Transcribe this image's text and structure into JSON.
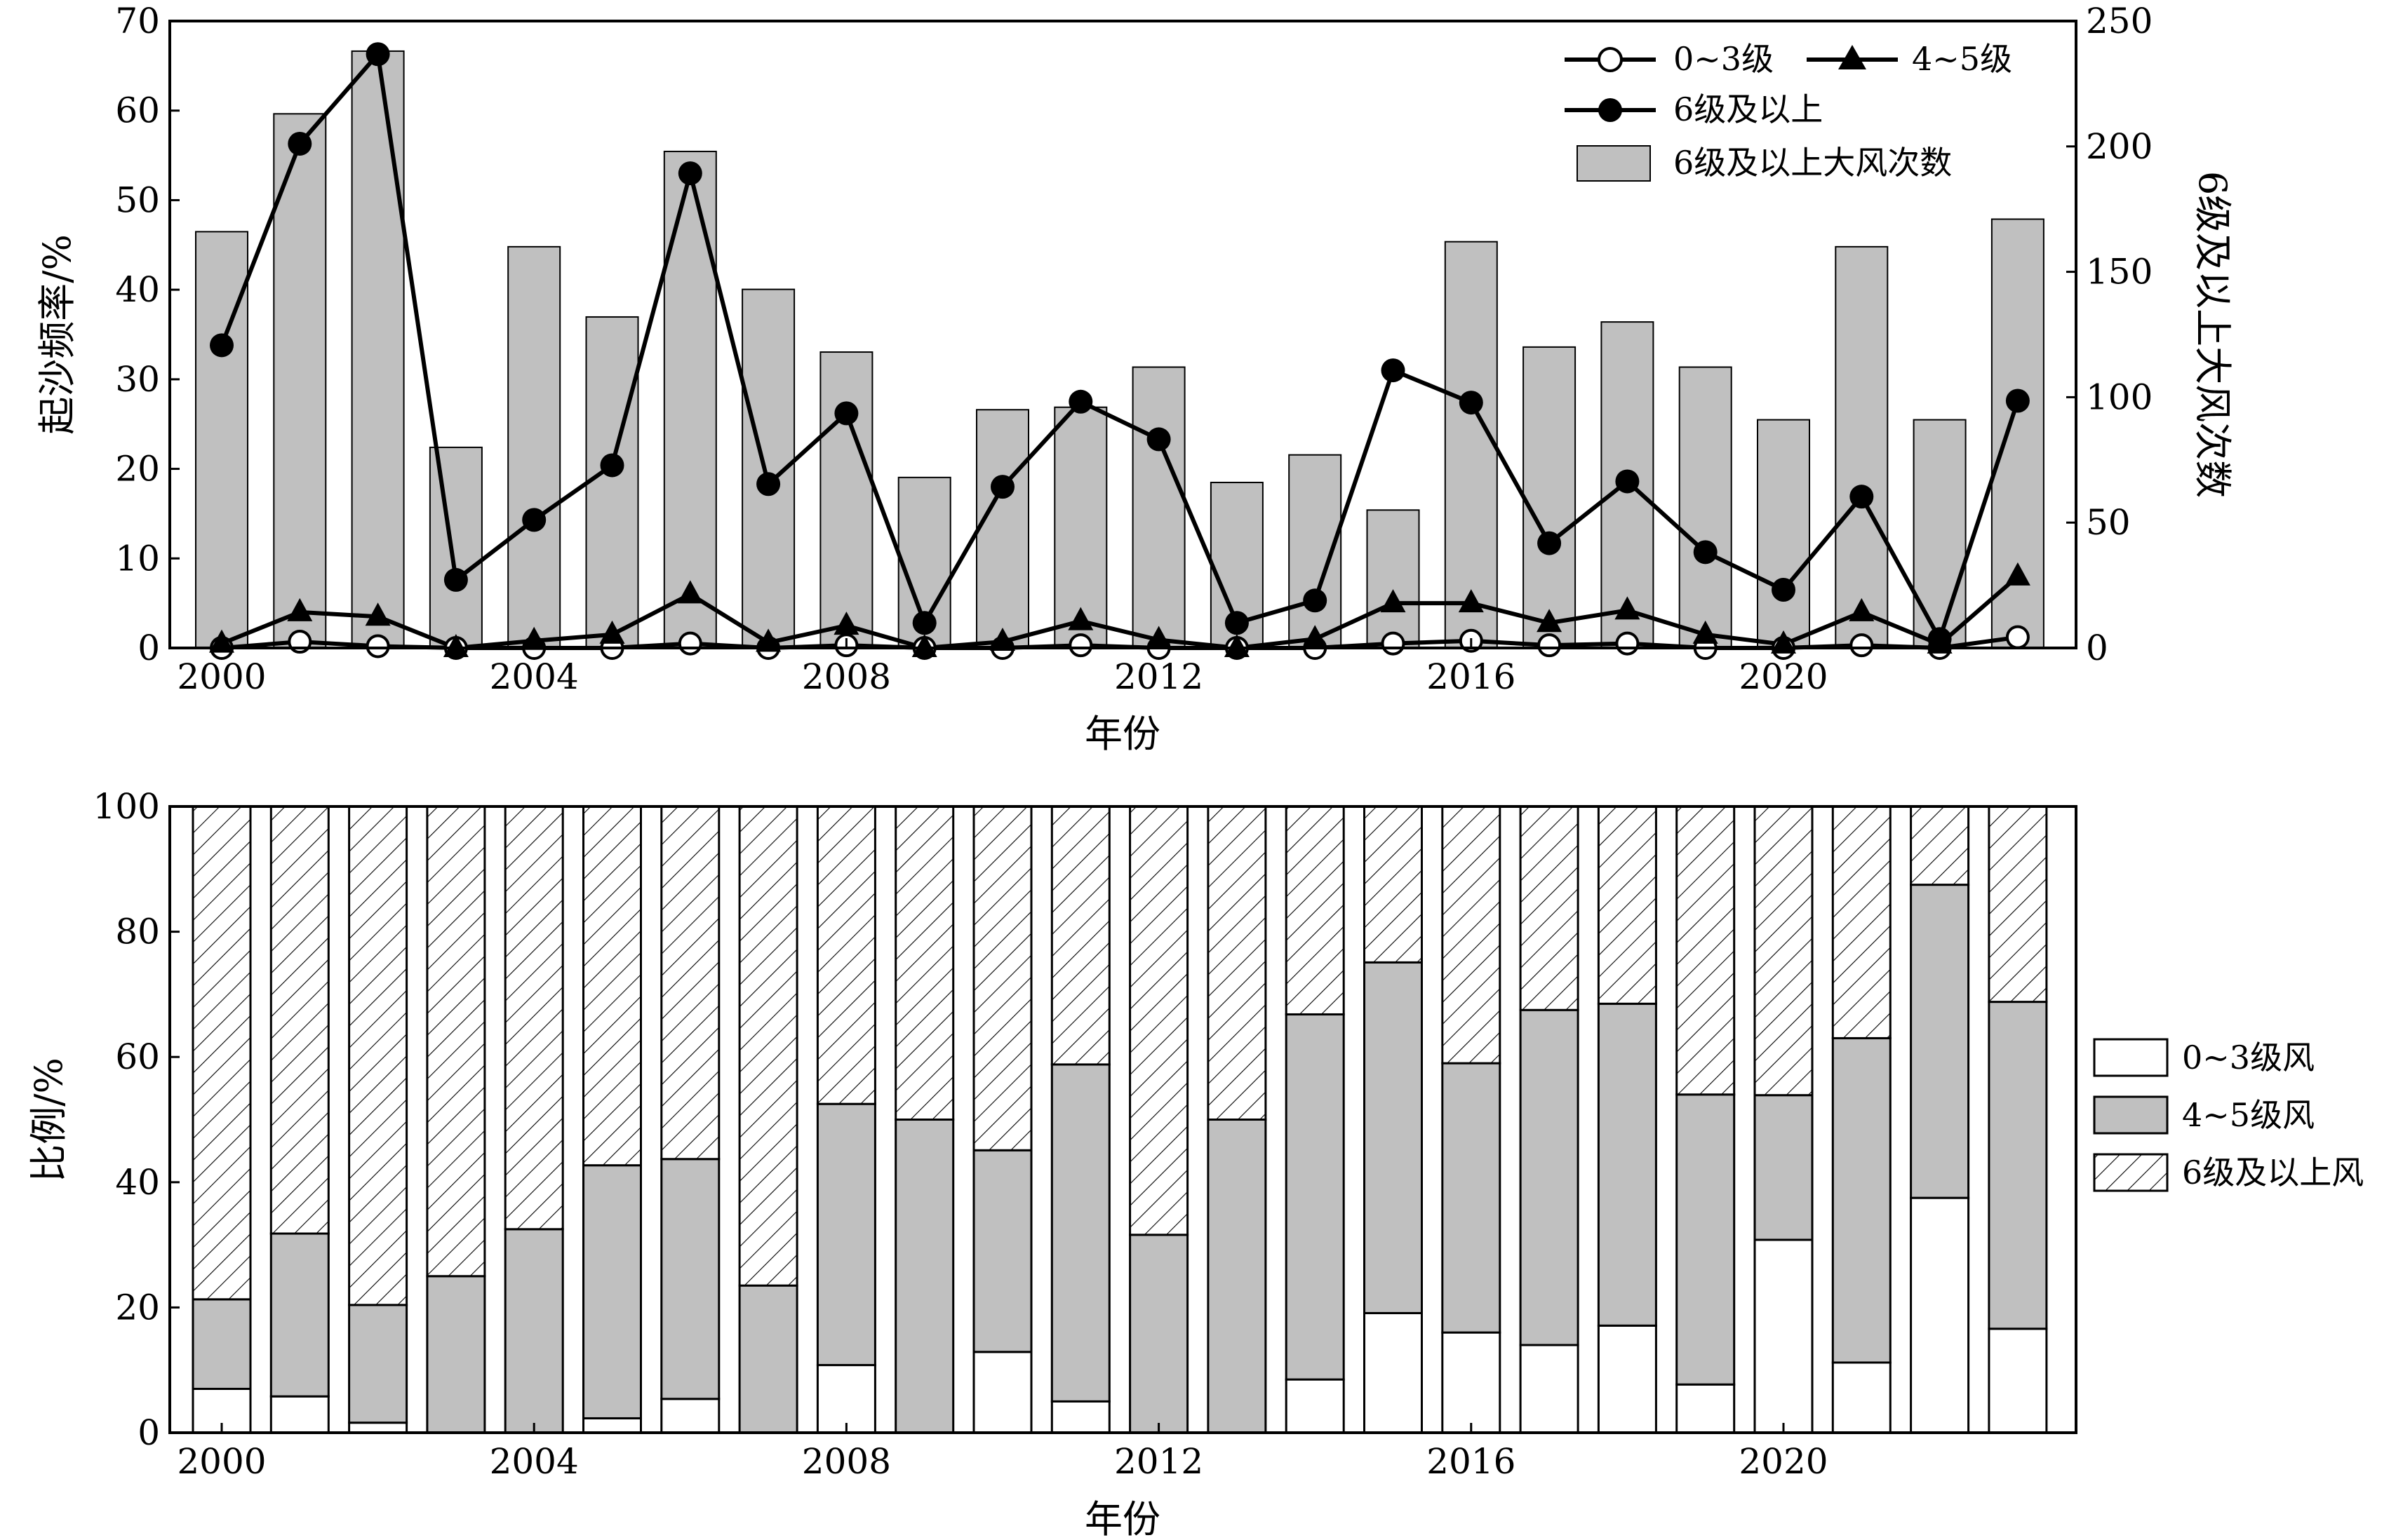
{
  "colors": {
    "bar_gray": "#c0c0c0",
    "line": "#000000",
    "background": "#ffffff"
  },
  "chart_data": [
    {
      "type": "bar",
      "panel": "top",
      "xlabel": "年份",
      "ylabel_left": "起沙频率/%",
      "ylabel_right": "6级及以上大风次数",
      "ylim_left": [
        0,
        70
      ],
      "ylim_right": [
        0,
        250
      ],
      "x_ticks": [
        2000,
        2004,
        2008,
        2012,
        2016,
        2020
      ],
      "y_ticks_left": [
        0,
        10,
        20,
        30,
        40,
        50,
        60,
        70
      ],
      "y_ticks_right": [
        0,
        50,
        100,
        150,
        200,
        250
      ],
      "years": [
        2000,
        2001,
        2002,
        2003,
        2004,
        2005,
        2006,
        2007,
        2008,
        2009,
        2010,
        2011,
        2012,
        2013,
        2014,
        2015,
        2016,
        2017,
        2018,
        2019,
        2020,
        2021,
        2022,
        2023
      ],
      "series": [
        {
          "name": "6级及以上大风次数",
          "kind": "bar",
          "axis": "right",
          "values": [
            166,
            213,
            238,
            80,
            160,
            132,
            198,
            143,
            118,
            68,
            95,
            96,
            112,
            66,
            77,
            55,
            162,
            120,
            130,
            112,
            91,
            160,
            91,
            171
          ]
        },
        {
          "name": "0~3级",
          "kind": "line",
          "marker": "open-circle",
          "axis": "left",
          "values": [
            0,
            0.7,
            0.2,
            0,
            0,
            0,
            0.5,
            0,
            0.3,
            0,
            0,
            0.3,
            0,
            0,
            0,
            0.5,
            0.8,
            0.3,
            0.5,
            0,
            0,
            0.3,
            0,
            1.2
          ]
        },
        {
          "name": "4~5级",
          "kind": "line",
          "marker": "filled-triangle",
          "axis": "left",
          "values": [
            0.5,
            4,
            3.5,
            0,
            0.8,
            1.5,
            6,
            0.6,
            2.5,
            0,
            0.7,
            3,
            0.9,
            0,
            1,
            5,
            5,
            2.8,
            4.2,
            1.5,
            0.4,
            4,
            0.4,
            8
          ]
        },
        {
          "name": "6级及以上",
          "kind": "line",
          "marker": "filled-circle",
          "axis": "left",
          "values": [
            33.8,
            56.3,
            66.3,
            7.6,
            14.3,
            20.4,
            53,
            18.3,
            26.2,
            2.8,
            18,
            27.5,
            23.3,
            2.8,
            5.3,
            31,
            27.4,
            11.7,
            18.6,
            10.7,
            6.5,
            16.9,
            1,
            27.6
          ]
        }
      ],
      "legend": {
        "placement": "top-right",
        "entries": [
          "0~3级",
          "4~5级",
          "6级及以上",
          "6级及以上大风次数"
        ]
      }
    },
    {
      "type": "bar",
      "stacked": true,
      "panel": "bottom",
      "xlabel": "年份",
      "ylabel": "比例/%",
      "ylim": [
        0,
        100
      ],
      "x_ticks": [
        2000,
        2004,
        2008,
        2012,
        2016,
        2020
      ],
      "y_ticks": [
        0,
        20,
        40,
        60,
        80,
        100
      ],
      "years": [
        2000,
        2001,
        2002,
        2003,
        2004,
        2005,
        2006,
        2007,
        2008,
        2009,
        2010,
        2011,
        2012,
        2013,
        2014,
        2015,
        2016,
        2017,
        2018,
        2019,
        2020,
        2021,
        2022,
        2023
      ],
      "series": [
        {
          "name": "0~3级风",
          "fill": "white",
          "values": [
            7,
            5.8,
            1.6,
            0,
            0,
            2.3,
            5.4,
            0,
            10.8,
            0,
            12.9,
            5,
            0,
            0,
            8.5,
            19.1,
            16,
            14,
            17.1,
            7.7,
            30.8,
            11.2,
            37.5,
            16.6
          ]
        },
        {
          "name": "4~5级风",
          "fill": "gray",
          "values": [
            14.3,
            26,
            18.8,
            25,
            32.5,
            40.4,
            38.3,
            23.5,
            41.7,
            50,
            32.2,
            53.8,
            31.6,
            50,
            58.3,
            56,
            43,
            53.5,
            51.4,
            46.3,
            23.1,
            51.8,
            50,
            52.2
          ]
        },
        {
          "name": "6级及以上风",
          "fill": "hatch",
          "values": [
            78.7,
            68.2,
            79.6,
            75,
            67.5,
            57.3,
            56.3,
            76.5,
            47.5,
            50,
            54.9,
            41.2,
            68.4,
            50,
            33.2,
            24.9,
            41,
            32.5,
            31.5,
            46,
            46.1,
            37,
            12.5,
            31.2
          ]
        }
      ],
      "legend": {
        "placement": "right",
        "entries": [
          "0~3级风",
          "4~5级风",
          "6级及以上风"
        ]
      }
    }
  ]
}
